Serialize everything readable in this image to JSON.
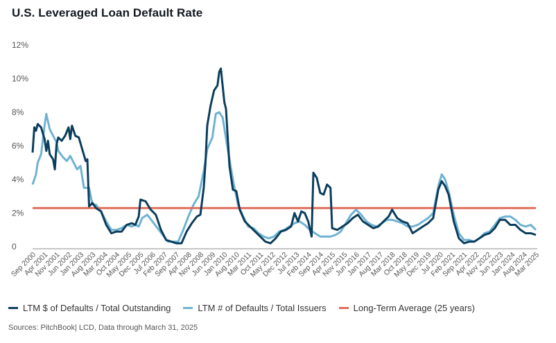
{
  "chart_data": {
    "type": "line",
    "title": "U.S. Leveraged Loan Default Rate",
    "xlabel": "",
    "ylabel": "",
    "ylim": [
      0,
      12
    ],
    "yticks": [
      "0",
      "2%",
      "4%",
      "6%",
      "8%",
      "10%",
      "12%"
    ],
    "ytick_values": [
      0,
      2,
      4,
      6,
      8,
      10,
      12
    ],
    "xrange": [
      "Sep 2000",
      "Mar 2025"
    ],
    "xticks": [
      "Sep 2000",
      "Apr 2001",
      "Nov 2001",
      "Jun 2002",
      "Jan 2003",
      "Aug 2003",
      "Mar 2004",
      "Oct 2004",
      "May 2005",
      "Dec 2005",
      "Jul 2006",
      "Feb 2007",
      "Sep 2007",
      "Apr 2008",
      "Nov 2008",
      "Jun 2009",
      "Jan 2010",
      "Aug 2010",
      "Mar 2011",
      "Oct 2011",
      "May 2012",
      "Dec 2012",
      "Jul 2013",
      "Feb 2014",
      "Sep 2014",
      "Apr 2015",
      "Nov 2015",
      "Jun 2016",
      "Jan 2017",
      "Aug 2017",
      "Mar 2018",
      "Oct 2018",
      "May 2019",
      "Dec 2019",
      "Jul 2020",
      "Feb 2021",
      "Sep 2021",
      "Apr 2022",
      "Nov 2022",
      "Jun 2023",
      "Jan 2024",
      "Aug 2024",
      "Mar 2025"
    ],
    "grid": false,
    "legend_position": "bottom",
    "series": [
      {
        "name": "LTM $ of Defaults / Total Outstanding",
        "color": "#0b3d5c",
        "points": [
          [
            "2000-09",
            5.6
          ],
          [
            "2000-10",
            7.1
          ],
          [
            "2000-11",
            6.9
          ],
          [
            "2000-12",
            7.3
          ],
          [
            "2001-02",
            7.1
          ],
          [
            "2001-04",
            6.4
          ],
          [
            "2001-05",
            5.7
          ],
          [
            "2001-06",
            6.3
          ],
          [
            "2001-07",
            5.5
          ],
          [
            "2001-09",
            5.2
          ],
          [
            "2001-10",
            4.6
          ],
          [
            "2001-11",
            6.1
          ],
          [
            "2001-12",
            6.5
          ],
          [
            "2002-02",
            6.3
          ],
          [
            "2002-04",
            6.6
          ],
          [
            "2002-06",
            7.1
          ],
          [
            "2002-07",
            6.4
          ],
          [
            "2002-08",
            7.2
          ],
          [
            "2002-10",
            6.6
          ],
          [
            "2002-12",
            6.5
          ],
          [
            "2003-02",
            5.8
          ],
          [
            "2003-04",
            5.1
          ],
          [
            "2003-05",
            5.2
          ],
          [
            "2003-06",
            2.4
          ],
          [
            "2003-08",
            2.6
          ],
          [
            "2003-10",
            2.3
          ],
          [
            "2004-01",
            2.1
          ],
          [
            "2004-04",
            1.3
          ],
          [
            "2004-07",
            0.8
          ],
          [
            "2004-10",
            0.9
          ],
          [
            "2005-01",
            0.9
          ],
          [
            "2005-04",
            1.3
          ],
          [
            "2005-07",
            1.4
          ],
          [
            "2005-09",
            1.3
          ],
          [
            "2005-11",
            1.8
          ],
          [
            "2005-12",
            2.8
          ],
          [
            "2006-03",
            2.7
          ],
          [
            "2006-06",
            2.2
          ],
          [
            "2006-09",
            1.9
          ],
          [
            "2006-12",
            1.0
          ],
          [
            "2007-03",
            0.4
          ],
          [
            "2007-06",
            0.3
          ],
          [
            "2007-09",
            0.2
          ],
          [
            "2007-12",
            0.2
          ],
          [
            "2008-03",
            0.9
          ],
          [
            "2008-06",
            1.4
          ],
          [
            "2008-09",
            1.8
          ],
          [
            "2008-11",
            1.9
          ],
          [
            "2009-01",
            3.5
          ],
          [
            "2009-02",
            5.0
          ],
          [
            "2009-03",
            7.2
          ],
          [
            "2009-05",
            8.4
          ],
          [
            "2009-07",
            9.3
          ],
          [
            "2009-09",
            9.6
          ],
          [
            "2009-10",
            10.4
          ],
          [
            "2009-11",
            10.6
          ],
          [
            "2010-01",
            8.6
          ],
          [
            "2010-02",
            8.2
          ],
          [
            "2010-04",
            4.8
          ],
          [
            "2010-06",
            3.4
          ],
          [
            "2010-08",
            3.3
          ],
          [
            "2010-10",
            2.2
          ],
          [
            "2011-01",
            1.5
          ],
          [
            "2011-04",
            1.2
          ],
          [
            "2011-07",
            0.9
          ],
          [
            "2011-10",
            0.6
          ],
          [
            "2012-01",
            0.3
          ],
          [
            "2012-04",
            0.2
          ],
          [
            "2012-07",
            0.5
          ],
          [
            "2012-10",
            0.9
          ],
          [
            "2013-01",
            1.0
          ],
          [
            "2013-04",
            1.2
          ],
          [
            "2013-06",
            2.0
          ],
          [
            "2013-08",
            1.5
          ],
          [
            "2013-10",
            2.1
          ],
          [
            "2013-12",
            2.0
          ],
          [
            "2014-02",
            1.5
          ],
          [
            "2014-04",
            0.6
          ],
          [
            "2014-05",
            4.4
          ],
          [
            "2014-07",
            4.1
          ],
          [
            "2014-09",
            3.2
          ],
          [
            "2014-11",
            3.1
          ],
          [
            "2015-01",
            3.7
          ],
          [
            "2015-03",
            3.5
          ],
          [
            "2015-04",
            1.1
          ],
          [
            "2015-07",
            1.0
          ],
          [
            "2015-10",
            1.2
          ],
          [
            "2016-01",
            1.4
          ],
          [
            "2016-04",
            1.7
          ],
          [
            "2016-07",
            1.9
          ],
          [
            "2016-10",
            1.5
          ],
          [
            "2017-01",
            1.3
          ],
          [
            "2017-04",
            1.1
          ],
          [
            "2017-07",
            1.2
          ],
          [
            "2017-10",
            1.5
          ],
          [
            "2018-01",
            1.8
          ],
          [
            "2018-03",
            2.2
          ],
          [
            "2018-06",
            1.7
          ],
          [
            "2018-09",
            1.5
          ],
          [
            "2018-12",
            1.4
          ],
          [
            "2019-03",
            0.8
          ],
          [
            "2019-06",
            1.0
          ],
          [
            "2019-09",
            1.2
          ],
          [
            "2019-12",
            1.4
          ],
          [
            "2020-03",
            1.7
          ],
          [
            "2020-06",
            3.4
          ],
          [
            "2020-08",
            3.9
          ],
          [
            "2020-10",
            3.6
          ],
          [
            "2020-12",
            3.1
          ],
          [
            "2021-03",
            1.5
          ],
          [
            "2021-06",
            0.5
          ],
          [
            "2021-09",
            0.2
          ],
          [
            "2021-12",
            0.3
          ],
          [
            "2022-03",
            0.3
          ],
          [
            "2022-06",
            0.5
          ],
          [
            "2022-09",
            0.7
          ],
          [
            "2022-12",
            0.8
          ],
          [
            "2023-03",
            1.1
          ],
          [
            "2023-06",
            1.6
          ],
          [
            "2023-09",
            1.6
          ],
          [
            "2023-12",
            1.3
          ],
          [
            "2024-03",
            1.3
          ],
          [
            "2024-06",
            1.0
          ],
          [
            "2024-09",
            0.8
          ],
          [
            "2024-12",
            0.8
          ],
          [
            "2025-03",
            0.7
          ]
        ]
      },
      {
        "name": "LTM # of Defaults / Total Issuers",
        "color": "#6fb2d2",
        "points": [
          [
            "2000-09",
            3.7
          ],
          [
            "2000-11",
            4.3
          ],
          [
            "2000-12",
            5.0
          ],
          [
            "2001-02",
            5.5
          ],
          [
            "2001-04",
            7.2
          ],
          [
            "2001-05",
            7.9
          ],
          [
            "2001-07",
            7.0
          ],
          [
            "2001-09",
            6.6
          ],
          [
            "2001-10",
            6.4
          ],
          [
            "2001-11",
            6.2
          ],
          [
            "2001-12",
            5.7
          ],
          [
            "2002-03",
            5.3
          ],
          [
            "2002-05",
            5.1
          ],
          [
            "2002-07",
            5.4
          ],
          [
            "2002-09",
            5.0
          ],
          [
            "2002-11",
            4.6
          ],
          [
            "2003-01",
            4.8
          ],
          [
            "2003-03",
            3.5
          ],
          [
            "2003-06",
            3.5
          ],
          [
            "2003-08",
            2.5
          ],
          [
            "2003-10",
            2.5
          ],
          [
            "2004-01",
            2.1
          ],
          [
            "2004-04",
            1.5
          ],
          [
            "2004-07",
            1.0
          ],
          [
            "2004-10",
            1.0
          ],
          [
            "2005-01",
            1.1
          ],
          [
            "2005-04",
            1.3
          ],
          [
            "2005-07",
            1.2
          ],
          [
            "2005-09",
            1.3
          ],
          [
            "2005-11",
            1.2
          ],
          [
            "2006-01",
            1.7
          ],
          [
            "2006-04",
            1.9
          ],
          [
            "2006-07",
            1.5
          ],
          [
            "2006-10",
            1.1
          ],
          [
            "2007-01",
            0.7
          ],
          [
            "2007-04",
            0.3
          ],
          [
            "2007-07",
            0.3
          ],
          [
            "2007-10",
            0.3
          ],
          [
            "2008-01",
            1.0
          ],
          [
            "2008-04",
            1.8
          ],
          [
            "2008-07",
            2.5
          ],
          [
            "2008-10",
            3.0
          ],
          [
            "2009-01",
            4.5
          ],
          [
            "2009-03",
            5.8
          ],
          [
            "2009-06",
            6.5
          ],
          [
            "2009-08",
            7.9
          ],
          [
            "2009-10",
            8.0
          ],
          [
            "2009-12",
            7.7
          ],
          [
            "2010-03",
            5.8
          ],
          [
            "2010-06",
            4.0
          ],
          [
            "2010-09",
            2.5
          ],
          [
            "2010-12",
            1.8
          ],
          [
            "2011-03",
            1.2
          ],
          [
            "2011-06",
            1.1
          ],
          [
            "2011-09",
            0.8
          ],
          [
            "2011-12",
            0.6
          ],
          [
            "2012-03",
            0.5
          ],
          [
            "2012-06",
            0.6
          ],
          [
            "2012-09",
            0.9
          ],
          [
            "2012-12",
            1.0
          ],
          [
            "2013-03",
            1.2
          ],
          [
            "2013-06",
            1.4
          ],
          [
            "2013-09",
            1.5
          ],
          [
            "2013-12",
            1.3
          ],
          [
            "2014-03",
            1.0
          ],
          [
            "2014-06",
            0.8
          ],
          [
            "2014-09",
            0.6
          ],
          [
            "2014-12",
            0.6
          ],
          [
            "2015-03",
            0.6
          ],
          [
            "2015-06",
            0.7
          ],
          [
            "2015-09",
            0.9
          ],
          [
            "2015-12",
            1.4
          ],
          [
            "2016-03",
            1.9
          ],
          [
            "2016-06",
            2.2
          ],
          [
            "2016-09",
            1.9
          ],
          [
            "2016-12",
            1.5
          ],
          [
            "2017-03",
            1.3
          ],
          [
            "2017-06",
            1.2
          ],
          [
            "2017-09",
            1.4
          ],
          [
            "2017-12",
            1.6
          ],
          [
            "2018-03",
            1.6
          ],
          [
            "2018-06",
            1.5
          ],
          [
            "2018-09",
            1.4
          ],
          [
            "2018-12",
            1.2
          ],
          [
            "2019-03",
            1.2
          ],
          [
            "2019-06",
            1.3
          ],
          [
            "2019-09",
            1.5
          ],
          [
            "2019-12",
            1.7
          ],
          [
            "2020-03",
            2.0
          ],
          [
            "2020-06",
            3.6
          ],
          [
            "2020-08",
            4.3
          ],
          [
            "2020-10",
            4.0
          ],
          [
            "2020-12",
            3.3
          ],
          [
            "2021-03",
            1.9
          ],
          [
            "2021-06",
            0.8
          ],
          [
            "2021-09",
            0.4
          ],
          [
            "2021-12",
            0.4
          ],
          [
            "2022-03",
            0.3
          ],
          [
            "2022-06",
            0.5
          ],
          [
            "2022-09",
            0.8
          ],
          [
            "2022-12",
            0.9
          ],
          [
            "2023-03",
            1.3
          ],
          [
            "2023-06",
            1.7
          ],
          [
            "2023-09",
            1.8
          ],
          [
            "2023-12",
            1.8
          ],
          [
            "2024-03",
            1.6
          ],
          [
            "2024-06",
            1.3
          ],
          [
            "2024-09",
            1.2
          ],
          [
            "2024-12",
            1.3
          ],
          [
            "2025-03",
            1.0
          ]
        ]
      },
      {
        "name": "Long-Term Average (25 years)",
        "color": "#e06b5a",
        "constant": 2.3
      }
    ]
  },
  "legend": [
    {
      "label": "LTM $ of Defaults / Total Outstanding",
      "color": "#0b3d5c"
    },
    {
      "label": "LTM # of Defaults / Total Issuers",
      "color": "#6fb2d2"
    },
    {
      "label": "Long-Term Average (25 years)",
      "color": "#e06b5a"
    }
  ],
  "source": "Sources: PitchBook| LCD, Data through March 31, 2025"
}
